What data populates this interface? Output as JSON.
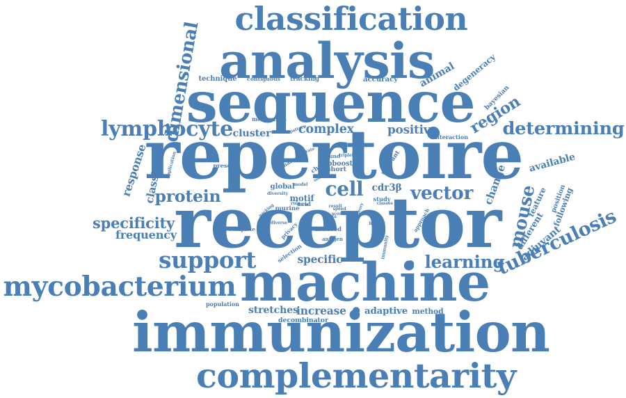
{
  "color": "#4a7fb5",
  "words": [
    {
      "text": "classification"
    },
    {
      "text": "analysis"
    },
    {
      "text": "sequence"
    },
    {
      "text": "repertoire"
    },
    {
      "text": "receptor"
    },
    {
      "text": "machine"
    },
    {
      "text": "immunization"
    },
    {
      "text": "complementarity"
    },
    {
      "text": "mycobacterium"
    },
    {
      "text": "lymphocyte"
    },
    {
      "text": "determining"
    },
    {
      "text": "tuberculosis"
    },
    {
      "text": "protein"
    },
    {
      "text": "support"
    },
    {
      "text": "vector"
    },
    {
      "text": "cell"
    },
    {
      "text": "learning"
    },
    {
      "text": "specificity"
    },
    {
      "text": "dimensional"
    },
    {
      "text": "region"
    },
    {
      "text": "mouse"
    },
    {
      "text": "complex"
    },
    {
      "text": "positive"
    },
    {
      "text": "cluster"
    },
    {
      "text": "frequency"
    },
    {
      "text": "response"
    },
    {
      "text": "classifier"
    },
    {
      "text": "motif"
    },
    {
      "text": "cdr3β"
    },
    {
      "text": "specific"
    },
    {
      "text": "stretches"
    },
    {
      "text": "increase"
    },
    {
      "text": "adaptive"
    },
    {
      "text": "method"
    },
    {
      "text": "decombinator"
    },
    {
      "text": "available"
    },
    {
      "text": "feature"
    },
    {
      "text": "position"
    },
    {
      "text": "different"
    },
    {
      "text": "adjuvant"
    },
    {
      "text": "following"
    },
    {
      "text": "change"
    },
    {
      "text": "degeneracy"
    },
    {
      "text": "bayesian"
    },
    {
      "text": "animal"
    },
    {
      "text": "accuracy"
    },
    {
      "text": "tracking"
    },
    {
      "text": "technique"
    },
    {
      "text": "contiguous"
    },
    {
      "text": "mechanism"
    },
    {
      "text": "interaction"
    },
    {
      "text": "relevant"
    },
    {
      "text": "global"
    },
    {
      "text": "murine"
    },
    {
      "text": "study"
    },
    {
      "text": "lpboost"
    },
    {
      "text": "short"
    },
    {
      "text": "induced"
    },
    {
      "text": "antigen"
    },
    {
      "text": "immunity"
    },
    {
      "text": "selection"
    },
    {
      "text": "privacy"
    },
    {
      "text": "diverse"
    },
    {
      "text": "complete"
    },
    {
      "text": "population"
    },
    {
      "text": "present"
    },
    {
      "text": "application"
    },
    {
      "text": "diversity"
    },
    {
      "text": "approach"
    },
    {
      "text": "chain"
    },
    {
      "text": "naive"
    },
    {
      "text": "found"
    },
    {
      "text": "triplet"
    },
    {
      "text": "acid"
    },
    {
      "text": "result"
    },
    {
      "text": "pattern"
    },
    {
      "text": "somatic"
    },
    {
      "text": "private"
    },
    {
      "text": "packing"
    },
    {
      "text": "model"
    },
    {
      "text": "classes"
    },
    {
      "text": "history"
    },
    {
      "text": "theory"
    },
    {
      "text": "form"
    },
    {
      "text": "rule"
    },
    {
      "text": "speed"
    },
    {
      "text": "score"
    },
    {
      "text": "data"
    }
  ]
}
